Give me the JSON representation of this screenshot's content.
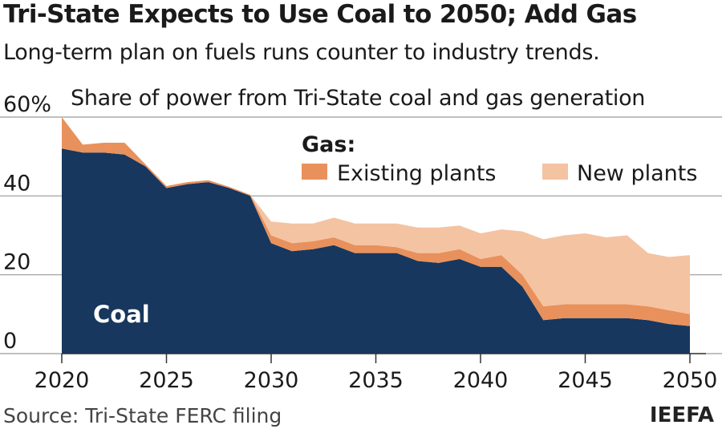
{
  "title": "Tri-State Expects to Use Coal to 2050; Add Gas",
  "subtitle": "Long-term plan on fuels runs counter to industry trends.",
  "source": "Source: Tri-State FERC filing",
  "brand": "IEEFA",
  "colors": {
    "coal": "#17375e",
    "existing_gas": "#e8915c",
    "new_gas": "#f4c3a2",
    "grid": "#9a9a9a",
    "text": "#1a1a1a"
  },
  "chart_data": {
    "type": "area",
    "stacked": true,
    "ylabel": "Share of power from Tri-State coal and gas generation",
    "ylim": [
      0,
      60
    ],
    "yticks": [
      0,
      20,
      40,
      60
    ],
    "ytick_labels": [
      "0",
      "20",
      "40",
      "60%"
    ],
    "xlim": [
      2020,
      2050
    ],
    "xticks": [
      2020,
      2025,
      2030,
      2035,
      2040,
      2045,
      2050
    ],
    "xtick_labels": [
      "2020",
      "2025",
      "2030",
      "2035",
      "2040",
      "2045",
      "2050"
    ],
    "grid": true,
    "legend": {
      "title": "Gas:",
      "placement": "top-right"
    },
    "x": [
      2020,
      2021,
      2022,
      2023,
      2024,
      2025,
      2026,
      2027,
      2028,
      2029,
      2030,
      2031,
      2032,
      2033,
      2034,
      2035,
      2036,
      2037,
      2038,
      2039,
      2040,
      2041,
      2042,
      2043,
      2044,
      2045,
      2046,
      2047,
      2048,
      2049,
      2050
    ],
    "series": [
      {
        "name": "Coal",
        "label_in_chart": true,
        "values": [
          52,
          51,
          51,
          50.5,
          47.5,
          42,
          43,
          43.5,
          42,
          40,
          28,
          26,
          26.5,
          27.5,
          25.5,
          25.5,
          25.5,
          23.5,
          23,
          24,
          22,
          22,
          17,
          8.5,
          9,
          9,
          9,
          9,
          8.5,
          7.5,
          7
        ]
      },
      {
        "name": "Existing plants",
        "values": [
          8,
          2,
          2.5,
          3,
          0.5,
          0.5,
          0.5,
          0.5,
          0.3,
          0.3,
          2,
          2,
          2,
          2,
          2,
          2,
          1.5,
          2,
          2.5,
          2.5,
          2,
          3,
          3,
          3.5,
          3.5,
          3.5,
          3.5,
          3.5,
          3.5,
          3.5,
          3
        ]
      },
      {
        "name": "New plants",
        "values": [
          0,
          0,
          0,
          0,
          0,
          0,
          0,
          0,
          0,
          0,
          3.5,
          5,
          4.5,
          5,
          5.5,
          5.5,
          6,
          6.5,
          6.5,
          6,
          6.5,
          6.5,
          11,
          17,
          17.5,
          18,
          17,
          17.5,
          13.5,
          13.5,
          15
        ]
      }
    ]
  }
}
